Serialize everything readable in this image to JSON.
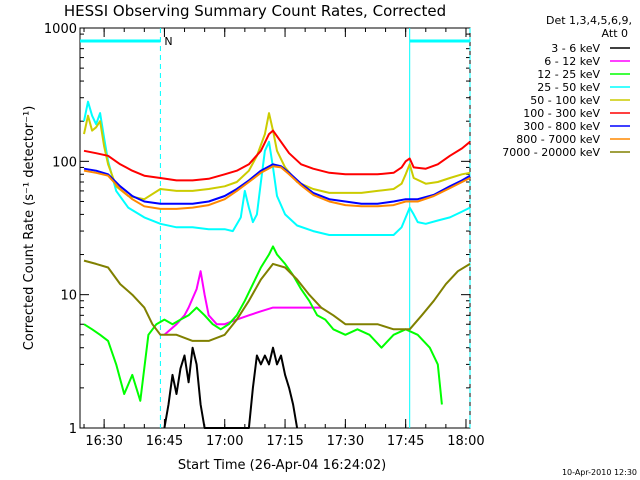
{
  "chart_data": {
    "type": "line",
    "title": "HESSI Observing Summary Count Rates, Corrected",
    "xlabel": "Start Time (26-Apr-04 16:24:02)",
    "ylabel": "Corrected Count Rate (s⁻¹ detector⁻¹)",
    "footer_date": "10-Apr-2010 12:30",
    "legend_header": [
      "Det 1,3,4,5,6,9,",
      "Att 0"
    ],
    "y_scale": "log",
    "ylim": [
      1,
      1000
    ],
    "y_ticks": [
      1,
      10,
      100,
      1000
    ],
    "y_tick_labels": [
      "1",
      "10",
      "100",
      "1000"
    ],
    "xlim": [
      "16:24",
      "18:01"
    ],
    "x_ticks": [
      "16:30",
      "16:45",
      "17:00",
      "17:15",
      "17:30",
      "17:45",
      "18:00"
    ],
    "grid": false,
    "legend_position": "right",
    "colors": {
      "axis": "#000000",
      "cyan": "#00ffff"
    },
    "night_bars": [
      {
        "start": "16:24",
        "end": "16:44",
        "label": "N"
      },
      {
        "start": "17:46",
        "end": "18:01",
        "label": ""
      }
    ],
    "dashed_markers": [
      "16:44",
      "18:01"
    ],
    "solid_markers": [
      "17:46"
    ],
    "series": [
      {
        "name": "3 - 6 keV",
        "color": "#000000",
        "points": [
          [
            "16:45",
            1
          ],
          [
            "16:46",
            1.5
          ],
          [
            "16:47",
            2.5
          ],
          [
            "16:48",
            1.8
          ],
          [
            "16:49",
            2.8
          ],
          [
            "16:50",
            3.5
          ],
          [
            "16:51",
            2.2
          ],
          [
            "16:52",
            4
          ],
          [
            "16:53",
            3
          ],
          [
            "16:54",
            1.5
          ],
          [
            "16:55",
            1
          ],
          [
            "17:06",
            1
          ],
          [
            "17:07",
            2
          ],
          [
            "17:08",
            3.5
          ],
          [
            "17:09",
            3
          ],
          [
            "17:10",
            3.5
          ],
          [
            "17:11",
            3
          ],
          [
            "17:12",
            4
          ],
          [
            "17:13",
            3
          ],
          [
            "17:14",
            3.5
          ],
          [
            "17:15",
            2.5
          ],
          [
            "17:16",
            2
          ],
          [
            "17:17",
            1.5
          ],
          [
            "17:18",
            1
          ]
        ]
      },
      {
        "name": "6 - 12 keV",
        "color": "#ff00ff",
        "points": [
          [
            "16:45",
            5
          ],
          [
            "16:48",
            6
          ],
          [
            "16:50",
            7
          ],
          [
            "16:51",
            8
          ],
          [
            "16:53",
            11
          ],
          [
            "16:54",
            15
          ],
          [
            "16:55",
            10
          ],
          [
            "16:56",
            7
          ],
          [
            "16:58",
            6
          ],
          [
            "17:00",
            6
          ],
          [
            "17:03",
            6.5
          ],
          [
            "17:06",
            7
          ],
          [
            "17:09",
            7.5
          ],
          [
            "17:12",
            8
          ],
          [
            "17:15",
            8
          ],
          [
            "17:18",
            8
          ],
          [
            "17:21",
            8
          ],
          [
            "17:24",
            8
          ]
        ]
      },
      {
        "name": "12 - 25 keV",
        "color": "#00ff00",
        "points": [
          [
            "16:25",
            6
          ],
          [
            "16:27",
            5.5
          ],
          [
            "16:29",
            5
          ],
          [
            "16:31",
            4.5
          ],
          [
            "16:33",
            3
          ],
          [
            "16:35",
            1.8
          ],
          [
            "16:37",
            2.5
          ],
          [
            "16:39",
            1.6
          ],
          [
            "16:41",
            5
          ],
          [
            "16:43",
            6
          ],
          [
            "16:45",
            6.5
          ],
          [
            "16:47",
            6
          ],
          [
            "16:49",
            6.5
          ],
          [
            "16:51",
            7
          ],
          [
            "16:53",
            8
          ],
          [
            "16:55",
            7
          ],
          [
            "16:57",
            6
          ],
          [
            "16:59",
            5.5
          ],
          [
            "17:01",
            6
          ],
          [
            "17:03",
            7
          ],
          [
            "17:05",
            9
          ],
          [
            "17:07",
            12
          ],
          [
            "17:09",
            16
          ],
          [
            "17:11",
            20
          ],
          [
            "17:12",
            23
          ],
          [
            "17:13",
            20
          ],
          [
            "17:15",
            17
          ],
          [
            "17:17",
            14
          ],
          [
            "17:19",
            11
          ],
          [
            "17:21",
            9
          ],
          [
            "17:23",
            7
          ],
          [
            "17:25",
            6.5
          ],
          [
            "17:27",
            5.5
          ],
          [
            "17:30",
            5
          ],
          [
            "17:33",
            5.5
          ],
          [
            "17:36",
            5
          ],
          [
            "17:39",
            4
          ],
          [
            "17:42",
            5
          ],
          [
            "17:45",
            5.5
          ],
          [
            "17:48",
            5
          ],
          [
            "17:51",
            4
          ],
          [
            "17:53",
            3
          ],
          [
            "17:54",
            1.5
          ]
        ]
      },
      {
        "name": "25 - 50 keV",
        "color": "#00ffff",
        "points": [
          [
            "16:25",
            200
          ],
          [
            "16:26",
            280
          ],
          [
            "16:27",
            220
          ],
          [
            "16:28",
            190
          ],
          [
            "16:29",
            230
          ],
          [
            "16:30",
            150
          ],
          [
            "16:31",
            100
          ],
          [
            "16:33",
            60
          ],
          [
            "16:36",
            45
          ],
          [
            "16:40",
            38
          ],
          [
            "16:44",
            34
          ],
          [
            "16:48",
            32
          ],
          [
            "16:52",
            32
          ],
          [
            "16:56",
            31
          ],
          [
            "17:00",
            31
          ],
          [
            "17:02",
            30
          ],
          [
            "17:04",
            38
          ],
          [
            "17:05",
            60
          ],
          [
            "17:06",
            45
          ],
          [
            "17:07",
            35
          ],
          [
            "17:08",
            40
          ],
          [
            "17:09",
            70
          ],
          [
            "17:10",
            120
          ],
          [
            "17:11",
            140
          ],
          [
            "17:12",
            90
          ],
          [
            "17:13",
            55
          ],
          [
            "17:15",
            40
          ],
          [
            "17:18",
            33
          ],
          [
            "17:22",
            30
          ],
          [
            "17:26",
            28
          ],
          [
            "17:30",
            28
          ],
          [
            "17:34",
            28
          ],
          [
            "17:38",
            28
          ],
          [
            "17:42",
            28
          ],
          [
            "17:44",
            32
          ],
          [
            "17:45",
            38
          ],
          [
            "17:46",
            45
          ],
          [
            "17:47",
            40
          ],
          [
            "17:48",
            35
          ],
          [
            "17:50",
            34
          ],
          [
            "17:53",
            36
          ],
          [
            "17:56",
            38
          ],
          [
            "17:59",
            42
          ],
          [
            "18:01",
            45
          ]
        ]
      },
      {
        "name": "50 - 100 keV",
        "color": "#cccc00",
        "points": [
          [
            "16:25",
            160
          ],
          [
            "16:26",
            220
          ],
          [
            "16:27",
            170
          ],
          [
            "16:28",
            180
          ],
          [
            "16:29",
            200
          ],
          [
            "16:30",
            130
          ],
          [
            "16:31",
            95
          ],
          [
            "16:33",
            65
          ],
          [
            "16:36",
            55
          ],
          [
            "16:40",
            52
          ],
          [
            "16:44",
            62
          ],
          [
            "16:48",
            60
          ],
          [
            "16:52",
            60
          ],
          [
            "16:56",
            62
          ],
          [
            "17:00",
            65
          ],
          [
            "17:03",
            70
          ],
          [
            "17:06",
            85
          ],
          [
            "17:08",
            110
          ],
          [
            "17:10",
            160
          ],
          [
            "17:11",
            230
          ],
          [
            "17:12",
            170
          ],
          [
            "17:13",
            120
          ],
          [
            "17:15",
            90
          ],
          [
            "17:18",
            70
          ],
          [
            "17:22",
            62
          ],
          [
            "17:26",
            58
          ],
          [
            "17:30",
            58
          ],
          [
            "17:34",
            58
          ],
          [
            "17:38",
            60
          ],
          [
            "17:42",
            62
          ],
          [
            "17:44",
            68
          ],
          [
            "17:45",
            80
          ],
          [
            "17:46",
            95
          ],
          [
            "17:47",
            75
          ],
          [
            "17:50",
            68
          ],
          [
            "17:53",
            70
          ],
          [
            "17:56",
            75
          ],
          [
            "17:59",
            80
          ],
          [
            "18:01",
            82
          ]
        ]
      },
      {
        "name": "100 - 300 keV",
        "color": "#ff0000",
        "points": [
          [
            "16:25",
            120
          ],
          [
            "16:28",
            115
          ],
          [
            "16:31",
            110
          ],
          [
            "16:34",
            95
          ],
          [
            "16:37",
            85
          ],
          [
            "16:40",
            78
          ],
          [
            "16:44",
            75
          ],
          [
            "16:48",
            72
          ],
          [
            "16:52",
            72
          ],
          [
            "16:56",
            74
          ],
          [
            "17:00",
            80
          ],
          [
            "17:03",
            85
          ],
          [
            "17:06",
            95
          ],
          [
            "17:09",
            120
          ],
          [
            "17:11",
            160
          ],
          [
            "17:12",
            170
          ],
          [
            "17:14",
            140
          ],
          [
            "17:16",
            115
          ],
          [
            "17:19",
            95
          ],
          [
            "17:22",
            88
          ],
          [
            "17:26",
            82
          ],
          [
            "17:30",
            80
          ],
          [
            "17:34",
            80
          ],
          [
            "17:38",
            80
          ],
          [
            "17:42",
            82
          ],
          [
            "17:44",
            90
          ],
          [
            "17:45",
            100
          ],
          [
            "17:46",
            105
          ],
          [
            "17:47",
            90
          ],
          [
            "17:50",
            88
          ],
          [
            "17:53",
            95
          ],
          [
            "17:56",
            110
          ],
          [
            "17:59",
            125
          ],
          [
            "18:01",
            140
          ]
        ]
      },
      {
        "name": "300 - 800 keV",
        "color": "#0000ff",
        "points": [
          [
            "16:25",
            88
          ],
          [
            "16:28",
            85
          ],
          [
            "16:31",
            80
          ],
          [
            "16:34",
            65
          ],
          [
            "16:37",
            55
          ],
          [
            "16:40",
            50
          ],
          [
            "16:44",
            48
          ],
          [
            "16:48",
            48
          ],
          [
            "16:52",
            48
          ],
          [
            "16:56",
            50
          ],
          [
            "17:00",
            55
          ],
          [
            "17:03",
            62
          ],
          [
            "17:06",
            72
          ],
          [
            "17:09",
            85
          ],
          [
            "17:12",
            95
          ],
          [
            "17:14",
            92
          ],
          [
            "17:16",
            82
          ],
          [
            "17:19",
            68
          ],
          [
            "17:22",
            58
          ],
          [
            "17:26",
            52
          ],
          [
            "17:30",
            50
          ],
          [
            "17:34",
            48
          ],
          [
            "17:38",
            48
          ],
          [
            "17:42",
            50
          ],
          [
            "17:45",
            52
          ],
          [
            "17:48",
            52
          ],
          [
            "17:52",
            56
          ],
          [
            "17:56",
            65
          ],
          [
            "17:59",
            72
          ],
          [
            "18:01",
            78
          ]
        ]
      },
      {
        "name": "800 - 7000 keV",
        "color": "#ff8800",
        "points": [
          [
            "16:25",
            85
          ],
          [
            "16:28",
            82
          ],
          [
            "16:31",
            78
          ],
          [
            "16:34",
            62
          ],
          [
            "16:37",
            52
          ],
          [
            "16:40",
            46
          ],
          [
            "16:44",
            44
          ],
          [
            "16:48",
            44
          ],
          [
            "16:52",
            45
          ],
          [
            "16:56",
            47
          ],
          [
            "17:00",
            52
          ],
          [
            "17:03",
            60
          ],
          [
            "17:06",
            70
          ],
          [
            "17:09",
            82
          ],
          [
            "17:12",
            92
          ],
          [
            "17:14",
            90
          ],
          [
            "17:16",
            80
          ],
          [
            "17:19",
            66
          ],
          [
            "17:22",
            56
          ],
          [
            "17:26",
            50
          ],
          [
            "17:30",
            47
          ],
          [
            "17:34",
            46
          ],
          [
            "17:38",
            46
          ],
          [
            "17:42",
            47
          ],
          [
            "17:45",
            50
          ],
          [
            "17:48",
            50
          ],
          [
            "17:52",
            55
          ],
          [
            "17:56",
            63
          ],
          [
            "17:59",
            70
          ],
          [
            "18:01",
            75
          ]
        ]
      },
      {
        "name": "7000 - 20000 keV",
        "color": "#808000",
        "points": [
          [
            "16:25",
            18
          ],
          [
            "16:28",
            17
          ],
          [
            "16:31",
            16
          ],
          [
            "16:34",
            12
          ],
          [
            "16:37",
            10
          ],
          [
            "16:40",
            8
          ],
          [
            "16:42",
            6
          ],
          [
            "16:44",
            5
          ],
          [
            "16:48",
            5
          ],
          [
            "16:52",
            4.5
          ],
          [
            "16:56",
            4.5
          ],
          [
            "17:00",
            5
          ],
          [
            "17:03",
            6.5
          ],
          [
            "17:06",
            9
          ],
          [
            "17:09",
            13
          ],
          [
            "17:12",
            17
          ],
          [
            "17:15",
            16
          ],
          [
            "17:18",
            13
          ],
          [
            "17:21",
            10
          ],
          [
            "17:24",
            8
          ],
          [
            "17:27",
            7
          ],
          [
            "17:30",
            6
          ],
          [
            "17:34",
            6
          ],
          [
            "17:38",
            6
          ],
          [
            "17:42",
            5.5
          ],
          [
            "17:46",
            5.5
          ],
          [
            "17:49",
            7
          ],
          [
            "17:52",
            9
          ],
          [
            "17:55",
            12
          ],
          [
            "17:58",
            15
          ],
          [
            "18:01",
            17
          ]
        ]
      }
    ]
  }
}
